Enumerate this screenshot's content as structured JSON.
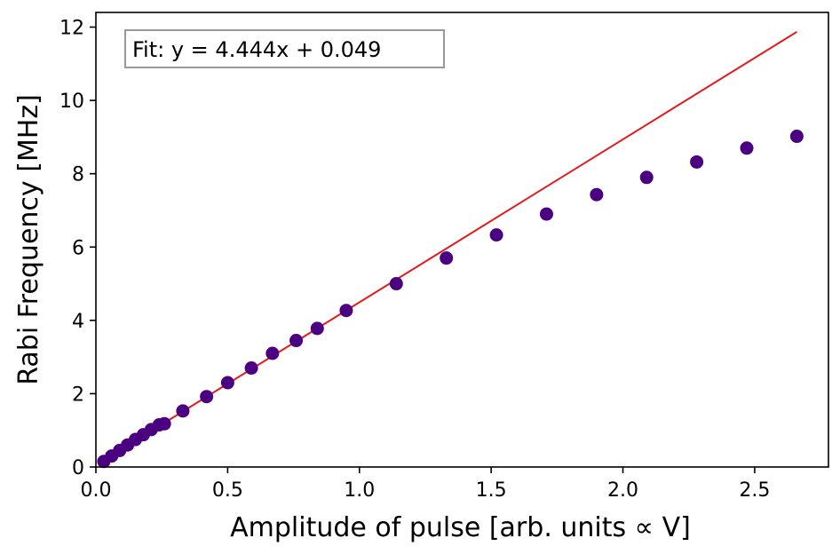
{
  "chart_data": {
    "type": "scatter",
    "xlabel": "Amplitude of pulse [arb. units ∝ V]",
    "ylabel": "Rabi Frequency [MHz]",
    "xlim": [
      0.0,
      2.78
    ],
    "ylim": [
      0.0,
      12.4
    ],
    "xticks": [
      0.0,
      0.5,
      1.0,
      1.5,
      2.0,
      2.5
    ],
    "xtick_labels": [
      "0.0",
      "0.5",
      "1.0",
      "1.5",
      "2.0",
      "2.5"
    ],
    "yticks": [
      0,
      2,
      4,
      6,
      8,
      10,
      12
    ],
    "ytick_labels": [
      "0",
      "2",
      "4",
      "6",
      "8",
      "10",
      "12"
    ],
    "grid": false,
    "series": [
      {
        "kind": "points",
        "color": "#4b0082",
        "x": [
          0.03,
          0.06,
          0.09,
          0.12,
          0.15,
          0.18,
          0.21,
          0.24,
          0.26,
          0.33,
          0.42,
          0.5,
          0.59,
          0.67,
          0.76,
          0.84,
          0.95,
          1.14,
          1.33,
          1.52,
          1.71,
          1.9,
          2.09,
          2.28,
          2.47,
          2.66
        ],
        "y": [
          0.15,
          0.3,
          0.45,
          0.6,
          0.75,
          0.88,
          1.02,
          1.15,
          1.18,
          1.53,
          1.92,
          2.3,
          2.7,
          3.1,
          3.45,
          3.78,
          4.27,
          5.0,
          5.7,
          6.33,
          6.9,
          7.43,
          7.9,
          8.32,
          8.7,
          9.02
        ]
      },
      {
        "kind": "line",
        "color": "#e41a1c",
        "x": [
          0.03,
          2.66
        ],
        "y": [
          0.182,
          11.87
        ]
      }
    ],
    "annotation": {
      "text": "Fit: y = 4.444x + 0.049",
      "placement": "top-left"
    }
  }
}
